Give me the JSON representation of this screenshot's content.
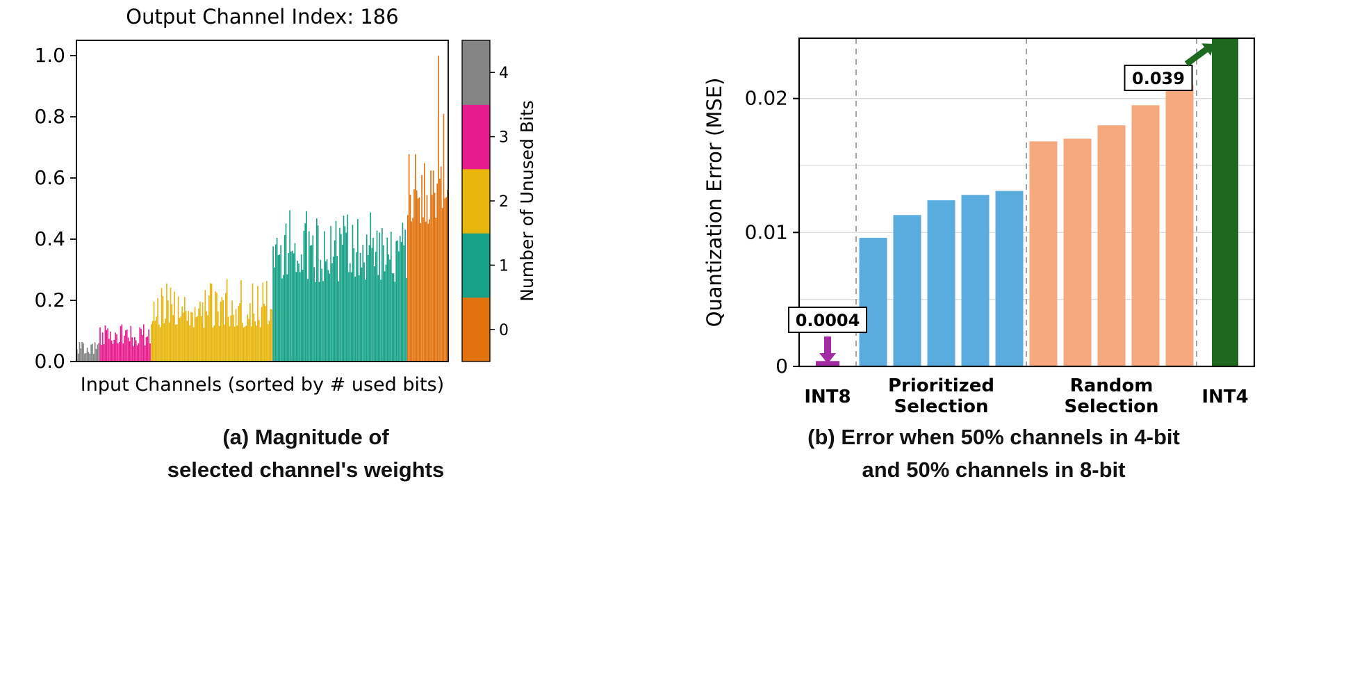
{
  "figure": {
    "caption_a_line1": "(a) Magnitude of",
    "caption_a_line2": "selected channel's weights",
    "caption_b_line1": "(b) Error when 50% channels in 4-bit",
    "caption_b_line2": "and 50% channels in 8-bit"
  },
  "chart_data": [
    {
      "id": "panel-a",
      "type": "bar",
      "title": "Output Channel Index: 186",
      "xlabel": "Input Channels (sorted by # used bits)",
      "ylabel": "",
      "ylim": [
        0,
        1.05
      ],
      "yticks": [
        0.0,
        0.2,
        0.4,
        0.6,
        0.8,
        1.0
      ],
      "grid": false,
      "colorbar": {
        "label": "Number of Unused Bits",
        "ticks": [
          0,
          1,
          2,
          3,
          4
        ],
        "colors_bottom_to_top": [
          "#e1720e",
          "#17a287",
          "#e7b50c",
          "#e81b8e",
          "#848484"
        ]
      },
      "segments": [
        {
          "unused_bits": 4,
          "color": "#848484",
          "count": 18,
          "min": 0.025,
          "max": 0.065
        },
        {
          "unused_bits": 3,
          "color": "#e81b8e",
          "count": 40,
          "min": 0.05,
          "max": 0.125
        },
        {
          "unused_bits": 2,
          "color": "#e7b50c",
          "count": 95,
          "min": 0.11,
          "max": 0.27
        },
        {
          "unused_bits": 1,
          "color": "#17a287",
          "count": 105,
          "min": 0.26,
          "max": 0.5
        },
        {
          "unused_bits": 0,
          "color": "#e1720e",
          "count": 32,
          "min": 0.45,
          "max": 0.68,
          "peaks": [
            {
              "at": 0.78,
              "value": 1.0
            },
            {
              "at": 0.9,
              "value": 0.81
            }
          ]
        }
      ]
    },
    {
      "id": "panel-b",
      "type": "bar",
      "title": "",
      "xlabel": "",
      "ylabel": "Quantization Error (MSE)",
      "ylim": [
        0,
        0.0245
      ],
      "yticks": [
        0,
        0.01,
        0.02
      ],
      "gridlines": [
        0.005,
        0.01,
        0.015,
        0.02
      ],
      "separator_style": "dashed",
      "groups": [
        {
          "label": "INT8",
          "color": "#a32ba3",
          "values": [
            0.0004
          ]
        },
        {
          "label": "Prioritized\nSelection",
          "color": "#5aabde",
          "values": [
            0.0096,
            0.0113,
            0.0124,
            0.0128,
            0.0131
          ]
        },
        {
          "label": "Random\nSelection",
          "color": "#f5a97d",
          "values": [
            0.0168,
            0.017,
            0.018,
            0.0195,
            0.021
          ]
        },
        {
          "label": "INT4",
          "color": "#1c691f",
          "values": [
            0.039
          ]
        }
      ],
      "annotations": [
        {
          "text": "0.0004",
          "target": "INT8",
          "color": "#a32ba3",
          "direction": "down"
        },
        {
          "text": "0.039",
          "target": "INT4",
          "color": "#1c691f",
          "direction": "up-right"
        }
      ]
    }
  ]
}
